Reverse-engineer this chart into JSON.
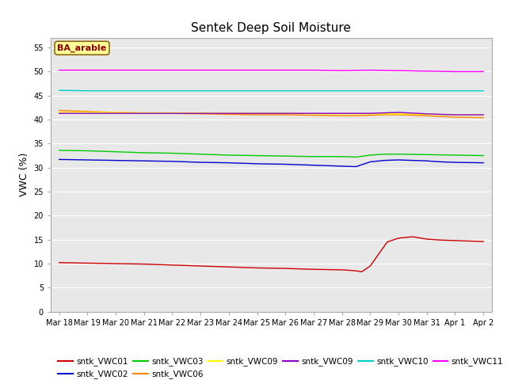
{
  "title": "Sentek Deep Soil Moisture",
  "ylabel": "VWC (%)",
  "ylim": [
    0,
    57
  ],
  "yticks": [
    0,
    5,
    10,
    15,
    20,
    25,
    30,
    35,
    40,
    45,
    50,
    55
  ],
  "annotation": "BA_arable",
  "bg_color": "#e8e8e8",
  "series": {
    "sntk_VWC01": {
      "color": "#cc0000",
      "label": "sntk_VWC01",
      "points": [
        [
          0,
          10.2
        ],
        [
          1,
          10.1
        ],
        [
          2,
          10.0
        ],
        [
          3,
          9.9
        ],
        [
          4,
          9.7
        ],
        [
          5,
          9.5
        ],
        [
          6,
          9.3
        ],
        [
          7,
          9.1
        ],
        [
          8,
          9.0
        ],
        [
          9,
          8.8
        ],
        [
          10,
          8.7
        ],
        [
          10.5,
          8.5
        ],
        [
          10.7,
          8.3
        ],
        [
          11,
          9.5
        ],
        [
          11.3,
          12.0
        ],
        [
          11.6,
          14.5
        ],
        [
          12,
          15.3
        ],
        [
          12.5,
          15.6
        ],
        [
          13,
          15.1
        ],
        [
          13.5,
          14.9
        ],
        [
          14,
          14.8
        ],
        [
          15,
          14.6
        ]
      ]
    },
    "sntk_VWC02": {
      "color": "#0000cc",
      "label": "sntk_VWC02",
      "points": [
        [
          0,
          31.7
        ],
        [
          1,
          31.6
        ],
        [
          2,
          31.5
        ],
        [
          3,
          31.4
        ],
        [
          4,
          31.3
        ],
        [
          5,
          31.1
        ],
        [
          6,
          31.0
        ],
        [
          7,
          30.8
        ],
        [
          8,
          30.7
        ],
        [
          9,
          30.5
        ],
        [
          10,
          30.3
        ],
        [
          10.5,
          30.2
        ],
        [
          11,
          31.2
        ],
        [
          11.5,
          31.5
        ],
        [
          12,
          31.6
        ],
        [
          13,
          31.4
        ],
        [
          13.5,
          31.2
        ],
        [
          14,
          31.1
        ],
        [
          15,
          31.0
        ]
      ]
    },
    "sntk_VWC03": {
      "color": "#00cc00",
      "label": "sntk_VWC03",
      "points": [
        [
          0,
          33.6
        ],
        [
          1,
          33.5
        ],
        [
          2,
          33.3
        ],
        [
          3,
          33.1
        ],
        [
          4,
          33.0
        ],
        [
          5,
          32.8
        ],
        [
          6,
          32.6
        ],
        [
          7,
          32.5
        ],
        [
          8,
          32.4
        ],
        [
          9,
          32.3
        ],
        [
          10,
          32.3
        ],
        [
          10.5,
          32.2
        ],
        [
          11,
          32.6
        ],
        [
          11.5,
          32.8
        ],
        [
          12,
          32.8
        ],
        [
          13,
          32.7
        ],
        [
          14,
          32.6
        ],
        [
          15,
          32.5
        ]
      ]
    },
    "sntk_VWC06": {
      "color": "#ff8800",
      "label": "sntk_VWC06",
      "points": [
        [
          0,
          41.9
        ],
        [
          1,
          41.7
        ],
        [
          2,
          41.5
        ],
        [
          3,
          41.4
        ],
        [
          4,
          41.3
        ],
        [
          5,
          41.2
        ],
        [
          6,
          41.1
        ],
        [
          7,
          41.0
        ],
        [
          8,
          41.0
        ],
        [
          9,
          40.9
        ],
        [
          10,
          40.8
        ],
        [
          10.5,
          40.8
        ],
        [
          11,
          40.9
        ],
        [
          11.5,
          41.0
        ],
        [
          12,
          41.0
        ],
        [
          13,
          40.8
        ],
        [
          14,
          40.5
        ],
        [
          15,
          40.4
        ]
      ]
    },
    "sntk_VWC09_yellow": {
      "color": "#ffff00",
      "label": "sntk_VWC09",
      "points": [
        [
          0,
          41.5
        ],
        [
          1,
          41.5
        ],
        [
          2,
          41.5
        ],
        [
          3,
          41.4
        ],
        [
          4,
          41.4
        ],
        [
          5,
          41.4
        ],
        [
          6,
          41.3
        ],
        [
          7,
          41.3
        ],
        [
          8,
          41.3
        ],
        [
          9,
          41.2
        ],
        [
          10,
          41.2
        ],
        [
          11,
          41.2
        ],
        [
          12,
          41.2
        ],
        [
          13,
          41.1
        ],
        [
          14,
          41.0
        ],
        [
          15,
          41.0
        ]
      ]
    },
    "sntk_VWC09_purple": {
      "color": "#8800cc",
      "label": "sntk_VWC09",
      "points": [
        [
          0,
          41.3
        ],
        [
          1,
          41.3
        ],
        [
          2,
          41.3
        ],
        [
          3,
          41.3
        ],
        [
          4,
          41.3
        ],
        [
          5,
          41.3
        ],
        [
          6,
          41.3
        ],
        [
          7,
          41.3
        ],
        [
          8,
          41.3
        ],
        [
          9,
          41.3
        ],
        [
          10,
          41.3
        ],
        [
          10.5,
          41.3
        ],
        [
          11,
          41.3
        ],
        [
          11.5,
          41.4
        ],
        [
          12,
          41.5
        ],
        [
          13,
          41.2
        ],
        [
          14,
          41.0
        ],
        [
          15,
          41.0
        ]
      ]
    },
    "sntk_VWC10": {
      "color": "#00cccc",
      "label": "sntk_VWC10",
      "points": [
        [
          0,
          46.1
        ],
        [
          1,
          46.0
        ],
        [
          2,
          46.0
        ],
        [
          3,
          46.0
        ],
        [
          4,
          46.0
        ],
        [
          5,
          46.0
        ],
        [
          6,
          46.0
        ],
        [
          7,
          46.0
        ],
        [
          8,
          46.0
        ],
        [
          9,
          46.0
        ],
        [
          10,
          46.0
        ],
        [
          11,
          46.0
        ],
        [
          12,
          46.0
        ],
        [
          13,
          46.0
        ],
        [
          14,
          46.0
        ],
        [
          15,
          46.0
        ]
      ]
    },
    "sntk_VWC11": {
      "color": "#ff00ff",
      "label": "sntk_VWC11",
      "points": [
        [
          0,
          50.3
        ],
        [
          1,
          50.3
        ],
        [
          2,
          50.3
        ],
        [
          3,
          50.3
        ],
        [
          4,
          50.3
        ],
        [
          5,
          50.3
        ],
        [
          6,
          50.3
        ],
        [
          7,
          50.3
        ],
        [
          8,
          50.3
        ],
        [
          9,
          50.3
        ],
        [
          10,
          50.2
        ],
        [
          11,
          50.3
        ],
        [
          12,
          50.2
        ],
        [
          13,
          50.1
        ],
        [
          14,
          50.0
        ],
        [
          15,
          50.0
        ]
      ]
    }
  },
  "xtick_labels": [
    "Mar 18",
    "Mar 19",
    "Mar 20",
    "Mar 21",
    "Mar 22",
    "Mar 23",
    "Mar 24",
    "Mar 25",
    "Mar 26",
    "Mar 27",
    "Mar 28",
    "Mar 29",
    "Mar 30",
    "Mar 31",
    "Apr 1",
    "Apr 2"
  ],
  "legend_order": [
    "sntk_VWC01",
    "sntk_VWC02",
    "sntk_VWC03",
    "sntk_VWC06",
    "sntk_VWC09_yellow",
    "sntk_VWC09_purple",
    "sntk_VWC10",
    "sntk_VWC11"
  ],
  "legend_labels": [
    "sntk_VWC01",
    "sntk_VWC02",
    "sntk_VWC03",
    "sntk_VWC06",
    "sntk_VWC09",
    "sntk_VWC09",
    "sntk_VWC10",
    "sntk_VWC11"
  ]
}
